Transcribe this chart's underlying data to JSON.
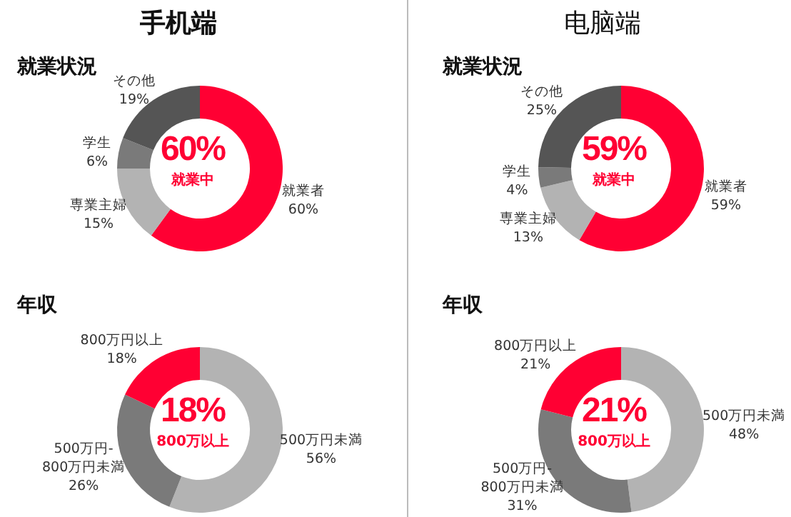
{
  "chart_data": [
    {
      "type": "donut",
      "title": "手机端",
      "subtitle": "就業状況",
      "categories": [
        "就業者",
        "専業主婦",
        "学生",
        "その他"
      ],
      "values": [
        60,
        15,
        6,
        19
      ],
      "colors": [
        "#ff0033",
        "#b3b3b3",
        "#7a7a7a",
        "#555555"
      ],
      "value_labels": [
        "60%",
        "15%",
        "6%",
        "19%"
      ],
      "annotations": [
        "60%",
        "就業中"
      ]
    },
    {
      "type": "donut",
      "title": "电脑端",
      "subtitle": "就業状況",
      "categories": [
        "就業者",
        "専業主婦",
        "学生",
        "その他"
      ],
      "values": [
        59,
        13,
        4,
        25
      ],
      "colors": [
        "#ff0033",
        "#b3b3b3",
        "#7a7a7a",
        "#555555"
      ],
      "value_labels": [
        "59%",
        "13%",
        "4%",
        "25%"
      ],
      "annotations": [
        "59%",
        "就業中"
      ]
    },
    {
      "type": "donut",
      "subtitle": "年収",
      "categories": [
        "500万円未満",
        "500万円-800万円未満",
        "800万円以上"
      ],
      "values": [
        56,
        26,
        18
      ],
      "colors": [
        "#b3b3b3",
        "#7a7a7a",
        "#ff0033"
      ],
      "value_labels": [
        "56%",
        "26%",
        "18%"
      ],
      "annotations": [
        "18%",
        "800万以上"
      ]
    },
    {
      "type": "donut",
      "subtitle": "年収",
      "categories": [
        "500万円未満",
        "500万円-800万円未満",
        "800万円以上"
      ],
      "values": [
        48,
        31,
        21
      ],
      "colors": [
        "#b3b3b3",
        "#7a7a7a",
        "#ff0033"
      ],
      "value_labels": [
        "48%",
        "31%",
        "21%"
      ],
      "annotations": [
        "21%",
        "800万以上"
      ]
    }
  ]
}
